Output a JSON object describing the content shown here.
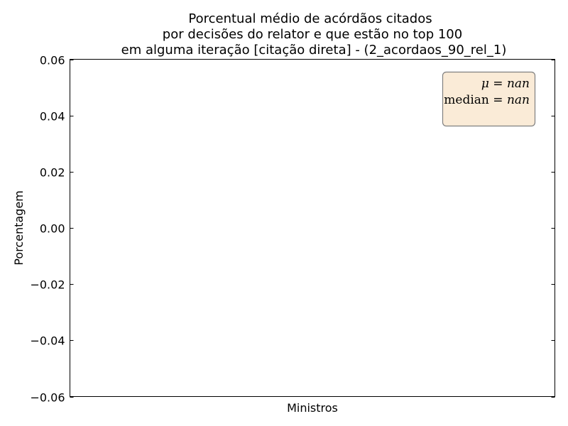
{
  "chart_data": {
    "type": "bar",
    "title_lines": [
      "Porcentual médio de acórdãos citados",
      "por decisões do relator e que estão no top 100",
      "em alguma iteração [citação direta] - (2_acordaos_90_rel_1)"
    ],
    "xlabel": "Ministros",
    "ylabel": "Porcentagem",
    "ylim": [
      -0.06,
      0.06
    ],
    "yticks": [
      0.06,
      0.04,
      0.02,
      0.0,
      -0.02,
      -0.04,
      -0.06
    ],
    "ytick_labels": [
      "0.06",
      "0.04",
      "0.02",
      "0.00",
      "−0.02",
      "−0.04",
      "−0.06"
    ],
    "categories": [],
    "values": [],
    "annotation": {
      "mean_symbol": "μ",
      "mean_value": "nan",
      "median_label": "median",
      "median_value": "nan",
      "placement": "top-right",
      "box_color": "#faebd7"
    },
    "grid": false,
    "legend": "none"
  }
}
